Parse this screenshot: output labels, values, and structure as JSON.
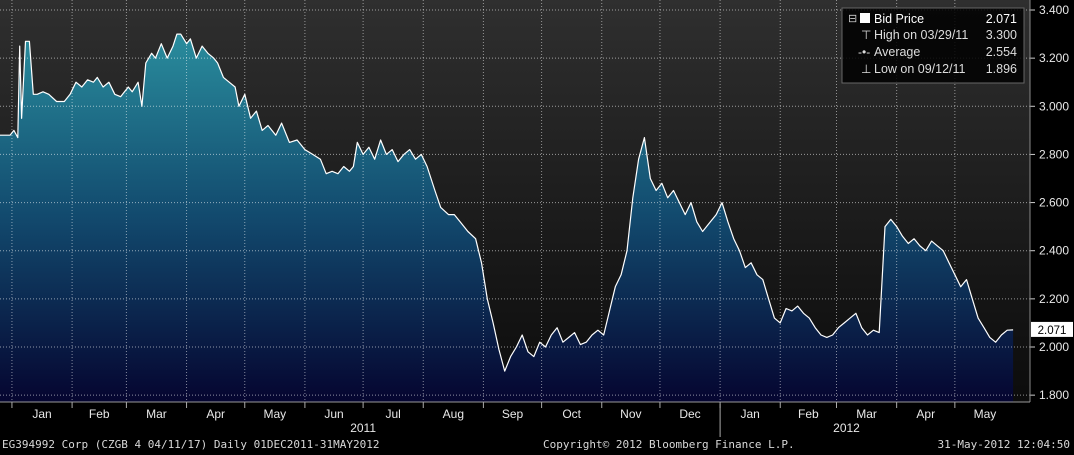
{
  "chart_data": {
    "type": "area",
    "series_name": "Bid Price",
    "ylim": [
      1.8,
      3.4
    ],
    "y_ticks": [
      "1.800",
      "2.000",
      "2.200",
      "2.400",
      "2.600",
      "2.800",
      "3.000",
      "3.200",
      "3.400"
    ],
    "x_month_labels": [
      "Jan",
      "Feb",
      "Mar",
      "Apr",
      "May",
      "Jun",
      "Jul",
      "Aug",
      "Sep",
      "Oct",
      "Nov",
      "Dec",
      "Jan",
      "Feb",
      "Mar",
      "Apr",
      "May"
    ],
    "year_labels": [
      "2011",
      "2012"
    ],
    "last_value_label": "2.071",
    "legend": {
      "bid_price": {
        "label": "Bid Price",
        "value": "2.071"
      },
      "high": {
        "label": "High on 03/29/11",
        "value": "3.300"
      },
      "average": {
        "label": "Average",
        "value": "2.554"
      },
      "low": {
        "label": "Low on 09/12/11",
        "value": "1.896"
      }
    },
    "points": [
      [
        "2010-12-31",
        2.88
      ],
      [
        "2011-01-02",
        2.9
      ],
      [
        "2011-01-04",
        2.87
      ],
      [
        "2011-01-05",
        3.25
      ],
      [
        "2011-01-06",
        2.95
      ],
      [
        "2011-01-08",
        3.27
      ],
      [
        "2011-01-10",
        3.27
      ],
      [
        "2011-01-12",
        3.05
      ],
      [
        "2011-01-14",
        3.05
      ],
      [
        "2011-01-17",
        3.06
      ],
      [
        "2011-01-20",
        3.05
      ],
      [
        "2011-01-24",
        3.02
      ],
      [
        "2011-01-28",
        3.02
      ],
      [
        "2011-01-31",
        3.05
      ],
      [
        "2011-02-03",
        3.1
      ],
      [
        "2011-02-06",
        3.08
      ],
      [
        "2011-02-09",
        3.11
      ],
      [
        "2011-02-12",
        3.1
      ],
      [
        "2011-02-14",
        3.12
      ],
      [
        "2011-02-17",
        3.08
      ],
      [
        "2011-02-20",
        3.1
      ],
      [
        "2011-02-23",
        3.05
      ],
      [
        "2011-02-26",
        3.04
      ],
      [
        "2011-02-28",
        3.06
      ],
      [
        "2011-03-02",
        3.08
      ],
      [
        "2011-03-04",
        3.06
      ],
      [
        "2011-03-07",
        3.1
      ],
      [
        "2011-03-09",
        3.0
      ],
      [
        "2011-03-11",
        3.18
      ],
      [
        "2011-03-14",
        3.22
      ],
      [
        "2011-03-16",
        3.2
      ],
      [
        "2011-03-19",
        3.26
      ],
      [
        "2011-03-22",
        3.2
      ],
      [
        "2011-03-25",
        3.25
      ],
      [
        "2011-03-27",
        3.3
      ],
      [
        "2011-03-29",
        3.3
      ],
      [
        "2011-04-01",
        3.26
      ],
      [
        "2011-04-03",
        3.28
      ],
      [
        "2011-04-06",
        3.2
      ],
      [
        "2011-04-09",
        3.25
      ],
      [
        "2011-04-12",
        3.22
      ],
      [
        "2011-04-15",
        3.2
      ],
      [
        "2011-04-17",
        3.18
      ],
      [
        "2011-04-20",
        3.12
      ],
      [
        "2011-04-23",
        3.1
      ],
      [
        "2011-04-26",
        3.08
      ],
      [
        "2011-04-28",
        3.0
      ],
      [
        "2011-05-01",
        3.05
      ],
      [
        "2011-05-04",
        2.95
      ],
      [
        "2011-05-07",
        2.98
      ],
      [
        "2011-05-10",
        2.9
      ],
      [
        "2011-05-13",
        2.92
      ],
      [
        "2011-05-17",
        2.88
      ],
      [
        "2011-05-20",
        2.93
      ],
      [
        "2011-05-24",
        2.85
      ],
      [
        "2011-05-28",
        2.86
      ],
      [
        "2011-06-01",
        2.82
      ],
      [
        "2011-06-05",
        2.8
      ],
      [
        "2011-06-09",
        2.78
      ],
      [
        "2011-06-12",
        2.72
      ],
      [
        "2011-06-15",
        2.73
      ],
      [
        "2011-06-18",
        2.72
      ],
      [
        "2011-06-21",
        2.75
      ],
      [
        "2011-06-24",
        2.73
      ],
      [
        "2011-06-26",
        2.75
      ],
      [
        "2011-06-28",
        2.85
      ],
      [
        "2011-07-01",
        2.8
      ],
      [
        "2011-07-04",
        2.83
      ],
      [
        "2011-07-07",
        2.78
      ],
      [
        "2011-07-10",
        2.86
      ],
      [
        "2011-07-13",
        2.8
      ],
      [
        "2011-07-16",
        2.82
      ],
      [
        "2011-07-19",
        2.77
      ],
      [
        "2011-07-22",
        2.8
      ],
      [
        "2011-07-25",
        2.82
      ],
      [
        "2011-07-28",
        2.78
      ],
      [
        "2011-07-31",
        2.8
      ],
      [
        "2011-08-03",
        2.75
      ],
      [
        "2011-08-07",
        2.65
      ],
      [
        "2011-08-10",
        2.58
      ],
      [
        "2011-08-14",
        2.55
      ],
      [
        "2011-08-17",
        2.55
      ],
      [
        "2011-08-20",
        2.52
      ],
      [
        "2011-08-24",
        2.48
      ],
      [
        "2011-08-28",
        2.45
      ],
      [
        "2011-08-31",
        2.35
      ],
      [
        "2011-09-03",
        2.2
      ],
      [
        "2011-09-06",
        2.1
      ],
      [
        "2011-09-09",
        1.99
      ],
      [
        "2011-09-12",
        1.9
      ],
      [
        "2011-09-15",
        1.96
      ],
      [
        "2011-09-18",
        2.0
      ],
      [
        "2011-09-21",
        2.05
      ],
      [
        "2011-09-24",
        1.98
      ],
      [
        "2011-09-27",
        1.96
      ],
      [
        "2011-09-30",
        2.02
      ],
      [
        "2011-10-03",
        2.0
      ],
      [
        "2011-10-06",
        2.05
      ],
      [
        "2011-10-09",
        2.08
      ],
      [
        "2011-10-12",
        2.02
      ],
      [
        "2011-10-15",
        2.04
      ],
      [
        "2011-10-18",
        2.06
      ],
      [
        "2011-10-21",
        2.01
      ],
      [
        "2011-10-24",
        2.02
      ],
      [
        "2011-10-27",
        2.05
      ],
      [
        "2011-10-30",
        2.07
      ],
      [
        "2011-11-02",
        2.05
      ],
      [
        "2011-11-05",
        2.15
      ],
      [
        "2011-11-08",
        2.25
      ],
      [
        "2011-11-11",
        2.3
      ],
      [
        "2011-11-14",
        2.4
      ],
      [
        "2011-11-17",
        2.62
      ],
      [
        "2011-11-20",
        2.78
      ],
      [
        "2011-11-23",
        2.87
      ],
      [
        "2011-11-26",
        2.7
      ],
      [
        "2011-11-29",
        2.65
      ],
      [
        "2011-12-02",
        2.68
      ],
      [
        "2011-12-05",
        2.62
      ],
      [
        "2011-12-08",
        2.65
      ],
      [
        "2011-12-11",
        2.6
      ],
      [
        "2011-12-14",
        2.55
      ],
      [
        "2011-12-17",
        2.6
      ],
      [
        "2011-12-20",
        2.52
      ],
      [
        "2011-12-23",
        2.48
      ],
      [
        "2011-12-27",
        2.52
      ],
      [
        "2011-12-30",
        2.55
      ],
      [
        "2012-01-02",
        2.6
      ],
      [
        "2012-01-05",
        2.52
      ],
      [
        "2012-01-08",
        2.45
      ],
      [
        "2012-01-11",
        2.4
      ],
      [
        "2012-01-14",
        2.33
      ],
      [
        "2012-01-17",
        2.35
      ],
      [
        "2012-01-20",
        2.3
      ],
      [
        "2012-01-23",
        2.28
      ],
      [
        "2012-01-26",
        2.2
      ],
      [
        "2012-01-29",
        2.12
      ],
      [
        "2012-02-01",
        2.1
      ],
      [
        "2012-02-04",
        2.16
      ],
      [
        "2012-02-07",
        2.15
      ],
      [
        "2012-02-10",
        2.17
      ],
      [
        "2012-02-13",
        2.14
      ],
      [
        "2012-02-16",
        2.12
      ],
      [
        "2012-02-19",
        2.08
      ],
      [
        "2012-02-22",
        2.05
      ],
      [
        "2012-02-25",
        2.04
      ],
      [
        "2012-02-28",
        2.05
      ],
      [
        "2012-03-02",
        2.08
      ],
      [
        "2012-03-05",
        2.1
      ],
      [
        "2012-03-08",
        2.12
      ],
      [
        "2012-03-11",
        2.14
      ],
      [
        "2012-03-14",
        2.08
      ],
      [
        "2012-03-17",
        2.05
      ],
      [
        "2012-03-20",
        2.07
      ],
      [
        "2012-03-23",
        2.06
      ],
      [
        "2012-03-26",
        2.5
      ],
      [
        "2012-03-29",
        2.53
      ],
      [
        "2012-04-01",
        2.5
      ],
      [
        "2012-04-04",
        2.46
      ],
      [
        "2012-04-07",
        2.43
      ],
      [
        "2012-04-10",
        2.45
      ],
      [
        "2012-04-13",
        2.42
      ],
      [
        "2012-04-16",
        2.4
      ],
      [
        "2012-04-19",
        2.44
      ],
      [
        "2012-04-22",
        2.42
      ],
      [
        "2012-04-25",
        2.4
      ],
      [
        "2012-04-28",
        2.35
      ],
      [
        "2012-05-01",
        2.3
      ],
      [
        "2012-05-04",
        2.25
      ],
      [
        "2012-05-07",
        2.28
      ],
      [
        "2012-05-10",
        2.2
      ],
      [
        "2012-05-13",
        2.12
      ],
      [
        "2012-05-16",
        2.08
      ],
      [
        "2012-05-19",
        2.04
      ],
      [
        "2012-05-22",
        2.02
      ],
      [
        "2012-05-25",
        2.05
      ],
      [
        "2012-05-28",
        2.07
      ],
      [
        "2012-05-31",
        2.071
      ]
    ]
  },
  "footer": {
    "security": "EG394992 Corp (CZGB 4 04/11/17)  Daily 01DEC2011-31MAY2012",
    "copyright": "Copyright© 2012 Bloomberg Finance L.P.",
    "timestamp": "31-May-2012 12:04:50"
  },
  "colors": {
    "line": "#ffffff",
    "fill_top": "#2a8e9e",
    "fill_bottom": "#050530",
    "grid": "#ffffff",
    "background": "#000000"
  }
}
